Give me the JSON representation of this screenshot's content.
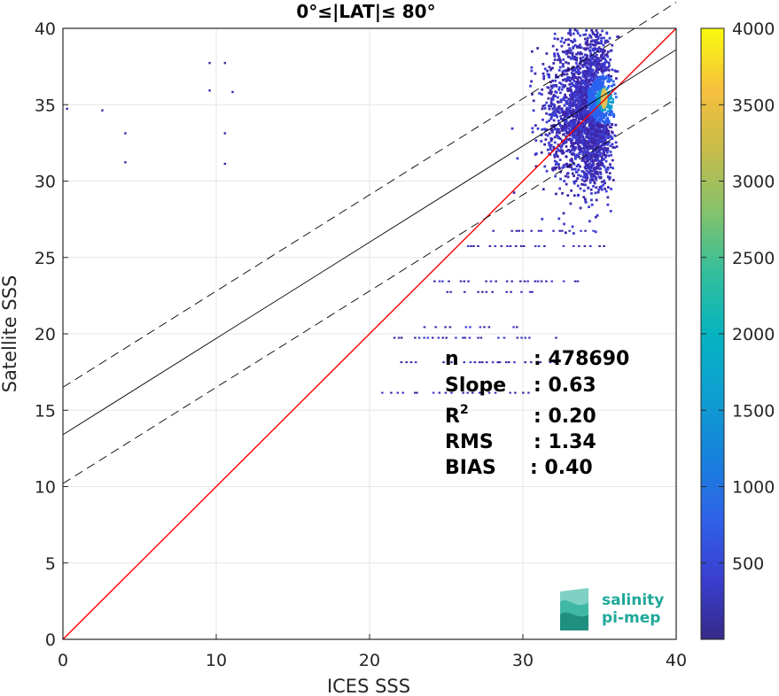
{
  "chart_data": {
    "type": "heatmap",
    "title": "0°≤|LAT|≤ 80°",
    "xlabel": "ICES SSS",
    "ylabel": "Satellite SSS",
    "xlim": [
      0,
      40
    ],
    "ylim": [
      0,
      40
    ],
    "x_ticks": [
      "0",
      "10",
      "20",
      "30",
      "40"
    ],
    "y_ticks": [
      "0",
      "5",
      "10",
      "15",
      "20",
      "25",
      "30",
      "35",
      "40"
    ],
    "grid": true,
    "colorbar": {
      "range": [
        0,
        4000
      ],
      "ticks": [
        "500",
        "1000",
        "1500",
        "2000",
        "2500",
        "3000",
        "3500",
        "4000"
      ],
      "colormap": "parula"
    },
    "density_core": {
      "x": 35.3,
      "y": 35.4
    },
    "lines": [
      {
        "role": "one-to-one",
        "color": "#ff0000",
        "style": "solid",
        "intercept": 0,
        "slope": 1
      },
      {
        "role": "regression",
        "color": "#000000",
        "style": "solid",
        "intercept": 13.4,
        "slope": 0.63
      },
      {
        "role": "upper-bound",
        "color": "#000000",
        "style": "dashed",
        "intercept": 16.5,
        "slope": 0.63
      },
      {
        "role": "lower-bound",
        "color": "#000000",
        "style": "dashed",
        "intercept": 10.2,
        "slope": 0.63
      }
    ],
    "stats": [
      {
        "key": "n",
        "value": ": 478690"
      },
      {
        "key": "Slope",
        "value": ": 0.63"
      },
      {
        "key": "R",
        "sup": "2",
        "value": ": 0.20"
      },
      {
        "key": "RMS",
        "value": ": 1.34"
      },
      {
        "key": "BIAS",
        "value": ": 0.40"
      }
    ]
  },
  "logo": {
    "line1": "salinity",
    "line2": "pi-mep"
  },
  "colors": {
    "logo_text": "#1fa89a",
    "logo_mark": "#2bb3a3"
  }
}
